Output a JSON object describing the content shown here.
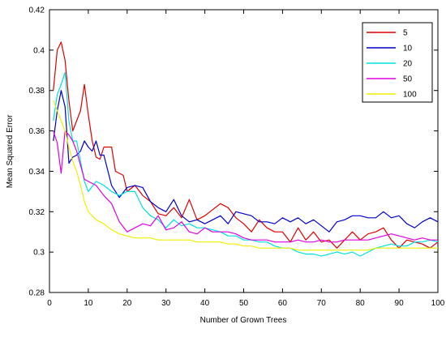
{
  "chart_data": {
    "type": "line",
    "title": "",
    "xlabel": "Number of Grown Trees",
    "ylabel": "Mean Squared Error",
    "xlim": [
      0,
      100
    ],
    "ylim": [
      0.28,
      0.42
    ],
    "xticks": [
      0,
      10,
      20,
      30,
      40,
      50,
      60,
      70,
      80,
      90,
      100
    ],
    "yticks": [
      0.28,
      0.3,
      0.32,
      0.34,
      0.36,
      0.38,
      0.4,
      0.42
    ],
    "ytick_labels": [
      "0.28",
      "0.3",
      "0.32",
      "0.34",
      "0.36",
      "0.38",
      "0.4",
      "0.42"
    ],
    "grid": false,
    "legend_position": "top-right",
    "series": [
      {
        "name": "5",
        "color": "#e00000",
        "x": [
          1,
          2,
          3,
          4,
          5,
          6,
          7,
          8,
          9,
          10,
          11,
          12,
          13,
          14,
          15,
          16,
          17,
          18,
          19,
          20,
          22,
          24,
          26,
          28,
          30,
          32,
          34,
          36,
          38,
          40,
          42,
          44,
          46,
          48,
          50,
          52,
          54,
          56,
          58,
          60,
          62,
          64,
          66,
          68,
          70,
          72,
          74,
          76,
          78,
          80,
          82,
          84,
          86,
          88,
          90,
          92,
          94,
          96,
          98,
          100
        ],
        "values": [
          0.38,
          0.4,
          0.404,
          0.395,
          0.375,
          0.36,
          0.365,
          0.37,
          0.383,
          0.368,
          0.355,
          0.347,
          0.346,
          0.352,
          0.352,
          0.352,
          0.34,
          0.339,
          0.338,
          0.33,
          0.333,
          0.328,
          0.325,
          0.319,
          0.318,
          0.322,
          0.317,
          0.326,
          0.316,
          0.318,
          0.321,
          0.324,
          0.322,
          0.317,
          0.314,
          0.31,
          0.316,
          0.312,
          0.31,
          0.31,
          0.305,
          0.312,
          0.306,
          0.31,
          0.305,
          0.306,
          0.302,
          0.306,
          0.31,
          0.306,
          0.309,
          0.31,
          0.312,
          0.306,
          0.302,
          0.306,
          0.305,
          0.304,
          0.302,
          0.305
        ]
      },
      {
        "name": "10",
        "color": "#0000c8",
        "x": [
          1,
          2,
          3,
          4,
          5,
          6,
          7,
          8,
          9,
          10,
          11,
          12,
          13,
          14,
          16,
          18,
          20,
          22,
          24,
          26,
          28,
          30,
          32,
          34,
          36,
          38,
          40,
          42,
          44,
          46,
          48,
          50,
          52,
          54,
          56,
          58,
          60,
          62,
          64,
          66,
          68,
          70,
          72,
          74,
          76,
          78,
          80,
          82,
          84,
          86,
          88,
          90,
          92,
          94,
          96,
          98,
          100
        ],
        "values": [
          0.355,
          0.37,
          0.38,
          0.372,
          0.344,
          0.347,
          0.348,
          0.35,
          0.355,
          0.352,
          0.35,
          0.355,
          0.348,
          0.348,
          0.333,
          0.327,
          0.332,
          0.333,
          0.332,
          0.325,
          0.322,
          0.32,
          0.326,
          0.318,
          0.315,
          0.316,
          0.314,
          0.316,
          0.318,
          0.314,
          0.32,
          0.319,
          0.318,
          0.315,
          0.315,
          0.314,
          0.317,
          0.315,
          0.317,
          0.314,
          0.316,
          0.313,
          0.31,
          0.315,
          0.316,
          0.318,
          0.318,
          0.317,
          0.317,
          0.32,
          0.317,
          0.318,
          0.314,
          0.312,
          0.315,
          0.317,
          0.315
        ]
      },
      {
        "name": "20",
        "color": "#00e0e0",
        "x": [
          1,
          2,
          3,
          4,
          5,
          6,
          7,
          8,
          9,
          10,
          12,
          14,
          16,
          18,
          20,
          22,
          24,
          26,
          28,
          30,
          32,
          34,
          36,
          38,
          40,
          42,
          44,
          46,
          48,
          50,
          52,
          54,
          56,
          58,
          60,
          62,
          64,
          66,
          68,
          70,
          72,
          74,
          76,
          78,
          80,
          82,
          84,
          86,
          88,
          90,
          92,
          94,
          96,
          98,
          100
        ],
        "values": [
          0.365,
          0.378,
          0.383,
          0.389,
          0.365,
          0.355,
          0.355,
          0.345,
          0.335,
          0.33,
          0.335,
          0.333,
          0.33,
          0.328,
          0.33,
          0.33,
          0.322,
          0.318,
          0.316,
          0.312,
          0.316,
          0.313,
          0.314,
          0.312,
          0.312,
          0.311,
          0.31,
          0.308,
          0.308,
          0.306,
          0.306,
          0.305,
          0.305,
          0.303,
          0.302,
          0.302,
          0.3,
          0.299,
          0.299,
          0.298,
          0.299,
          0.3,
          0.299,
          0.3,
          0.298,
          0.3,
          0.302,
          0.303,
          0.304,
          0.303,
          0.303,
          0.305,
          0.305,
          0.306,
          0.305
        ]
      },
      {
        "name": "50",
        "color": "#e000e0",
        "x": [
          1,
          2,
          3,
          4,
          5,
          6,
          7,
          8,
          9,
          10,
          12,
          14,
          16,
          18,
          20,
          22,
          24,
          26,
          28,
          30,
          32,
          34,
          36,
          38,
          40,
          42,
          44,
          46,
          48,
          50,
          52,
          54,
          56,
          58,
          60,
          62,
          64,
          66,
          68,
          70,
          72,
          74,
          76,
          78,
          80,
          82,
          84,
          86,
          88,
          90,
          92,
          94,
          96,
          98,
          100
        ],
        "values": [
          0.36,
          0.354,
          0.339,
          0.36,
          0.358,
          0.355,
          0.35,
          0.343,
          0.336,
          0.335,
          0.333,
          0.328,
          0.324,
          0.315,
          0.31,
          0.312,
          0.314,
          0.313,
          0.318,
          0.311,
          0.312,
          0.315,
          0.31,
          0.309,
          0.312,
          0.31,
          0.31,
          0.31,
          0.309,
          0.307,
          0.306,
          0.306,
          0.306,
          0.305,
          0.305,
          0.305,
          0.306,
          0.305,
          0.305,
          0.306,
          0.305,
          0.305,
          0.306,
          0.306,
          0.306,
          0.306,
          0.307,
          0.308,
          0.309,
          0.308,
          0.307,
          0.306,
          0.307,
          0.306,
          0.306
        ]
      },
      {
        "name": "100",
        "color": "#f0f000",
        "x": [
          1,
          2,
          3,
          4,
          5,
          6,
          7,
          8,
          9,
          10,
          12,
          14,
          16,
          18,
          20,
          22,
          24,
          26,
          28,
          30,
          32,
          34,
          36,
          38,
          40,
          42,
          44,
          46,
          48,
          50,
          52,
          54,
          56,
          58,
          60,
          62,
          64,
          66,
          68,
          70,
          72,
          74,
          76,
          78,
          80,
          82,
          84,
          86,
          88,
          90,
          92,
          94,
          96,
          98,
          100
        ],
        "values": [
          0.375,
          0.37,
          0.365,
          0.36,
          0.352,
          0.345,
          0.34,
          0.333,
          0.325,
          0.32,
          0.316,
          0.314,
          0.311,
          0.309,
          0.308,
          0.307,
          0.307,
          0.307,
          0.306,
          0.306,
          0.306,
          0.306,
          0.306,
          0.305,
          0.305,
          0.305,
          0.305,
          0.304,
          0.304,
          0.303,
          0.303,
          0.302,
          0.302,
          0.302,
          0.302,
          0.302,
          0.301,
          0.301,
          0.301,
          0.301,
          0.301,
          0.301,
          0.301,
          0.301,
          0.301,
          0.301,
          0.302,
          0.302,
          0.302,
          0.302,
          0.302,
          0.302,
          0.302,
          0.302,
          0.302
        ]
      }
    ]
  }
}
